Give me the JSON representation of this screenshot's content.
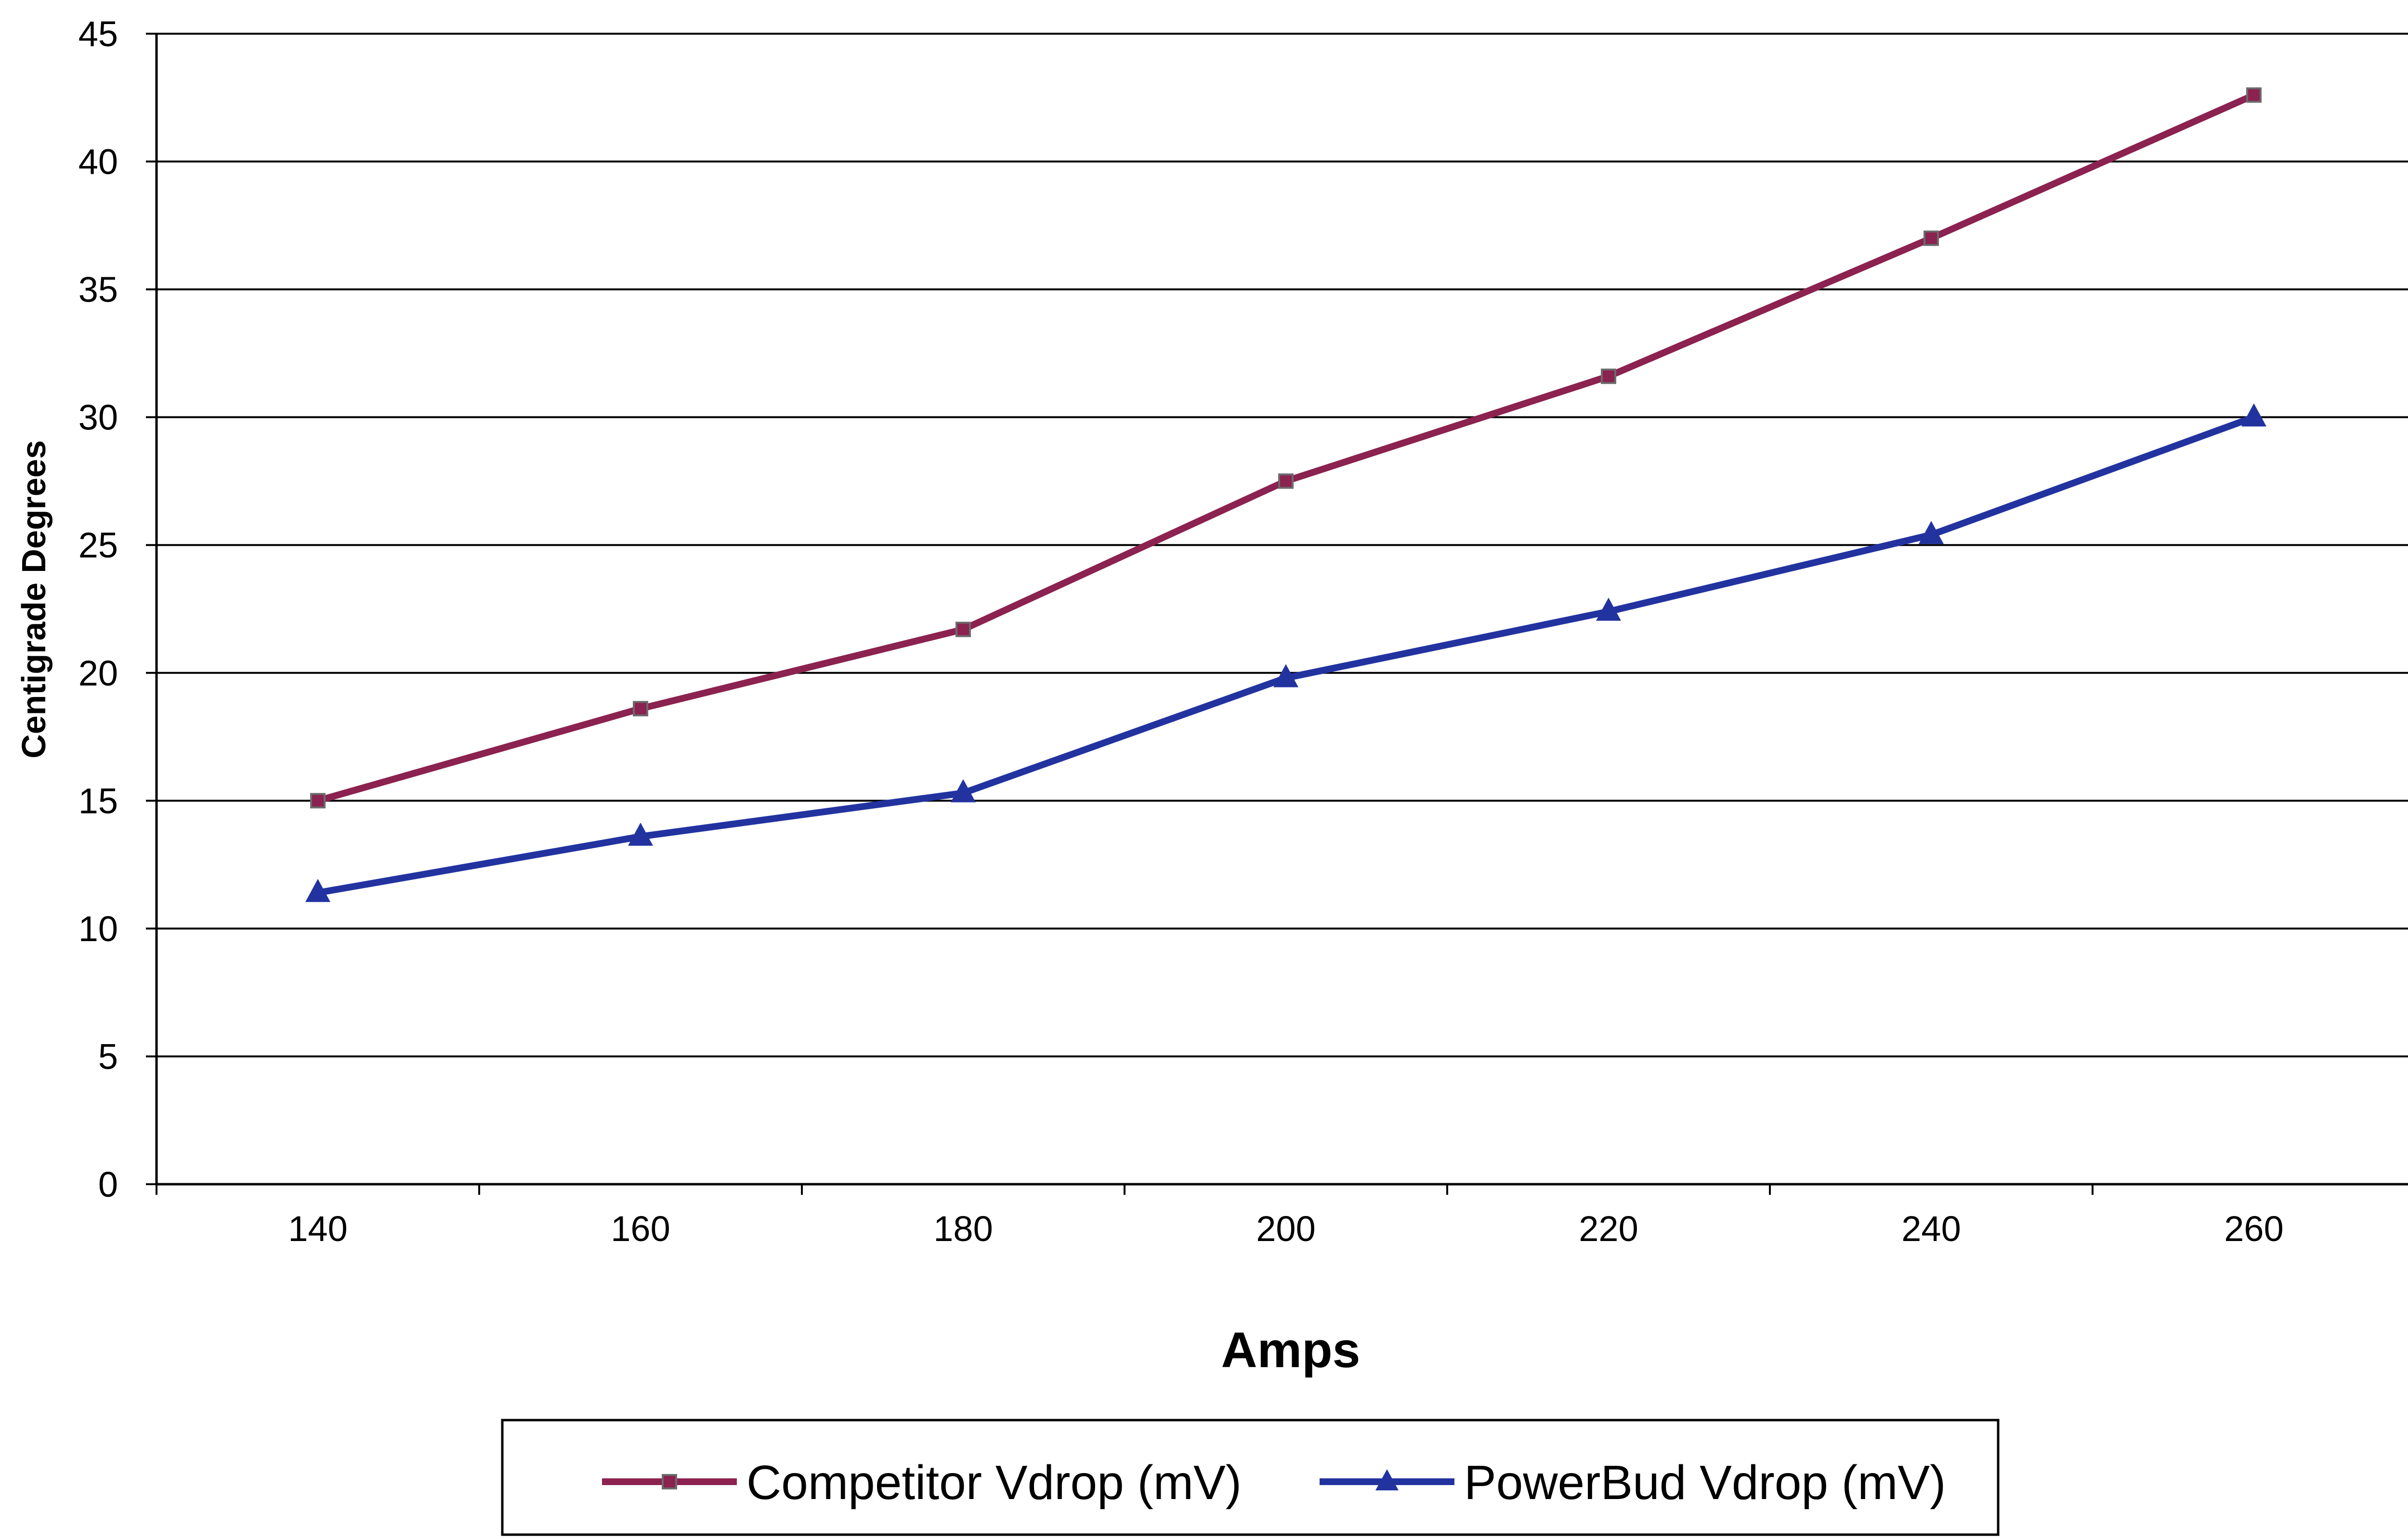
{
  "chart_data": {
    "type": "line",
    "title": "",
    "xlabel": "Amps",
    "ylabel": "Centigrade Degrees",
    "x": [
      140,
      160,
      180,
      200,
      220,
      240,
      260
    ],
    "x_tick_labels": [
      "140",
      "160",
      "180",
      "200",
      "220",
      "240",
      "260"
    ],
    "y_tick_labels": [
      "0",
      "5",
      "10",
      "15",
      "20",
      "25",
      "30",
      "35",
      "40",
      "45"
    ],
    "ylim": [
      0,
      45
    ],
    "xlim": [
      130,
      270
    ],
    "grid": "horizontal",
    "legend_position": "bottom",
    "series": [
      {
        "name": "Competitor Vdrop (mV)",
        "values": [
          15.0,
          18.6,
          21.7,
          27.5,
          31.6,
          37.0,
          42.6
        ],
        "color": "#8B2250",
        "marker": "square"
      },
      {
        "name": "PowerBud Vdrop (mV)",
        "values": [
          11.4,
          13.6,
          15.3,
          19.8,
          22.4,
          25.4,
          30.0
        ],
        "color": "#2233A0",
        "marker": "triangle"
      }
    ]
  }
}
